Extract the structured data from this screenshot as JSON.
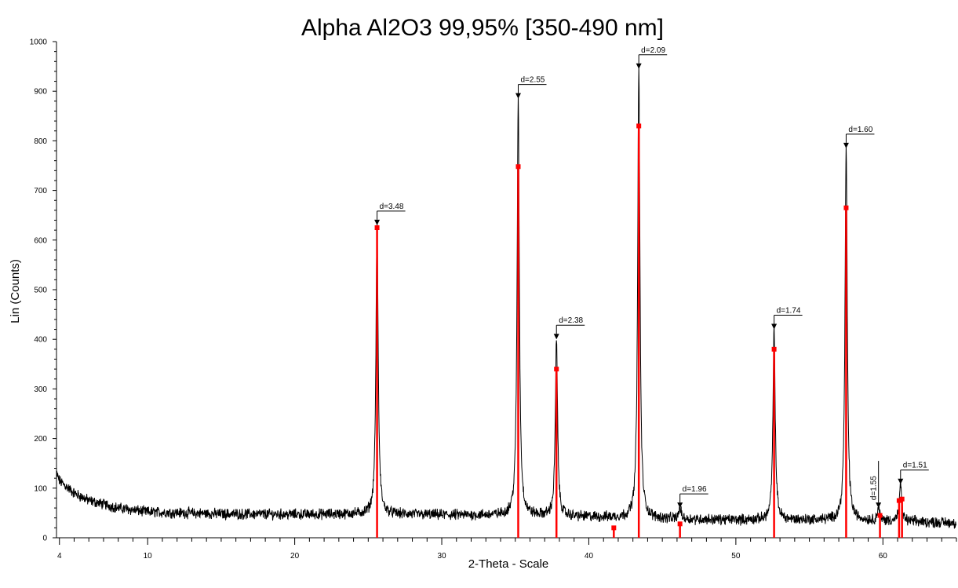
{
  "chart_data": {
    "type": "line",
    "title": "Alpha Al2O3 99,95% [350-490 nm]",
    "xlabel": "2-Theta - Scale",
    "ylabel": "Lin (Counts)",
    "xlim": [
      3.8,
      65
    ],
    "ylim": [
      0,
      1000
    ],
    "x_ticks": [
      4,
      10,
      20,
      30,
      40,
      50,
      60
    ],
    "y_ticks": [
      0,
      100,
      200,
      300,
      400,
      500,
      600,
      700,
      800,
      900,
      1000
    ],
    "grid": false,
    "legend": "none",
    "colors": {
      "trace": "#000000",
      "reference": "#ff0000"
    },
    "baseline": [
      {
        "x": 3.8,
        "y": 130
      },
      {
        "x": 4.0,
        "y": 115
      },
      {
        "x": 5.0,
        "y": 90
      },
      {
        "x": 6.0,
        "y": 75
      },
      {
        "x": 8.0,
        "y": 60
      },
      {
        "x": 10.0,
        "y": 52
      },
      {
        "x": 15.0,
        "y": 48
      },
      {
        "x": 20.0,
        "y": 47
      },
      {
        "x": 25.0,
        "y": 48
      },
      {
        "x": 30.0,
        "y": 46
      },
      {
        "x": 35.0,
        "y": 45
      },
      {
        "x": 40.0,
        "y": 42
      },
      {
        "x": 45.0,
        "y": 38
      },
      {
        "x": 50.0,
        "y": 36
      },
      {
        "x": 55.0,
        "y": 36
      },
      {
        "x": 60.0,
        "y": 34
      },
      {
        "x": 65.0,
        "y": 30
      }
    ],
    "peaks": [
      {
        "x": 25.6,
        "y": 630,
        "label": "d=3.48"
      },
      {
        "x": 35.2,
        "y": 885,
        "label": "d=2.55"
      },
      {
        "x": 37.8,
        "y": 400,
        "label": "d=2.38"
      },
      {
        "x": 43.4,
        "y": 945,
        "label": "d=2.09"
      },
      {
        "x": 46.2,
        "y": 60,
        "label": "d=1.96"
      },
      {
        "x": 52.6,
        "y": 420,
        "label": "d=1.74"
      },
      {
        "x": 57.5,
        "y": 785,
        "label": "d=1.60"
      },
      {
        "x": 59.7,
        "y": 60,
        "label": "d=1.55"
      },
      {
        "x": 61.2,
        "y": 108,
        "label": "d=1.51"
      }
    ],
    "reference_lines": [
      {
        "x": 25.6,
        "y": 625
      },
      {
        "x": 35.2,
        "y": 748
      },
      {
        "x": 37.8,
        "y": 340
      },
      {
        "x": 41.7,
        "y": 20
      },
      {
        "x": 43.4,
        "y": 830
      },
      {
        "x": 46.2,
        "y": 28
      },
      {
        "x": 52.6,
        "y": 380
      },
      {
        "x": 57.5,
        "y": 665
      },
      {
        "x": 59.8,
        "y": 45
      },
      {
        "x": 61.1,
        "y": 75
      },
      {
        "x": 61.3,
        "y": 78
      }
    ]
  }
}
